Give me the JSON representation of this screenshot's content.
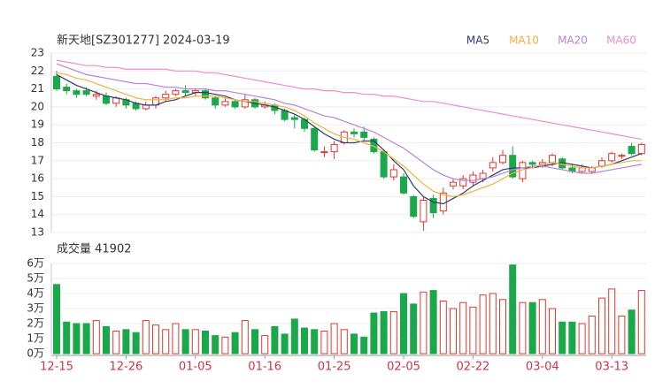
{
  "chart_data": [
    {
      "type": "candlestick",
      "title": "新天地[SZ301277] 2024-03-19",
      "up_color": "#e8352e",
      "down_color": "#1aa84a",
      "open": [
        21.7,
        21.1,
        20.9,
        20.9,
        20.6,
        20.6,
        20.2,
        20.4,
        20.2,
        19.9,
        20.1,
        20.5,
        20.7,
        20.9,
        20.8,
        20.9,
        20.5,
        20.1,
        20.3,
        20.0,
        20.4,
        20.0,
        20.1,
        19.8,
        19.4,
        19.3,
        18.8,
        17.5,
        17.5,
        18.0,
        18.6,
        18.6,
        18.2,
        17.5,
        16.1,
        16.1,
        15.0,
        13.6,
        14.9,
        14.2,
        15.6,
        15.6,
        15.8,
        16.0,
        16.6,
        16.9,
        17.3,
        16.0,
        16.9,
        16.8,
        16.9,
        17.1,
        16.6,
        16.4,
        16.4,
        16.7,
        17.0,
        17.3,
        17.8,
        17.4
      ],
      "high": [
        22.0,
        21.3,
        21.0,
        21.1,
        20.9,
        20.8,
        20.6,
        20.5,
        20.3,
        20.3,
        20.6,
        20.9,
        21.0,
        21.2,
        21.0,
        21.0,
        20.6,
        20.5,
        20.4,
        20.7,
        20.5,
        20.3,
        20.2,
        19.9,
        19.6,
        19.4,
        18.9,
        17.8,
        18.1,
        18.7,
        18.8,
        18.9,
        18.3,
        17.6,
        16.8,
        16.3,
        15.1,
        15.0,
        15.1,
        15.5,
        16.0,
        16.2,
        16.4,
        16.5,
        17.2,
        17.6,
        17.8,
        17.0,
        17.0,
        17.1,
        17.4,
        17.2,
        16.8,
        16.8,
        16.7,
        17.2,
        17.5,
        17.4,
        18.0,
        18.0
      ],
      "low": [
        20.9,
        20.7,
        20.5,
        20.6,
        20.4,
        20.1,
        20.0,
        19.9,
        19.8,
        19.8,
        19.9,
        20.3,
        20.6,
        20.6,
        20.6,
        20.4,
        19.9,
        20.0,
        19.9,
        19.9,
        19.9,
        19.9,
        19.6,
        19.2,
        18.8,
        18.6,
        17.5,
        17.2,
        17.1,
        17.9,
        18.3,
        18.1,
        17.4,
        16.0,
        15.9,
        15.1,
        13.8,
        13.1,
        13.8,
        14.0,
        15.4,
        15.4,
        15.6,
        15.8,
        16.4,
        16.8,
        16.0,
        15.8,
        16.6,
        16.6,
        16.7,
        16.5,
        16.3,
        16.3,
        16.3,
        16.6,
        16.9,
        17.1,
        17.3,
        17.3
      ],
      "close": [
        21.0,
        20.9,
        20.7,
        20.7,
        20.7,
        20.2,
        20.5,
        20.1,
        19.9,
        20.1,
        20.5,
        20.7,
        20.9,
        20.8,
        20.9,
        20.5,
        20.1,
        20.3,
        20.0,
        20.4,
        20.0,
        20.1,
        19.8,
        19.3,
        19.3,
        18.8,
        17.6,
        17.5,
        17.9,
        18.6,
        18.5,
        18.3,
        17.5,
        16.1,
        16.5,
        15.2,
        13.9,
        14.8,
        14.1,
        15.2,
        15.8,
        16.0,
        16.2,
        16.3,
        16.9,
        17.3,
        16.1,
        16.9,
        16.8,
        16.9,
        17.3,
        16.6,
        16.4,
        16.6,
        16.6,
        17.0,
        17.4,
        17.3,
        17.4,
        17.9
      ],
      "series": [
        {
          "name": "MA5",
          "color": "#2f3a66",
          "values": [
            21.8,
            21.5,
            21.2,
            21.0,
            20.8,
            20.6,
            20.5,
            20.4,
            20.2,
            20.1,
            20.1,
            20.3,
            20.4,
            20.6,
            20.8,
            20.8,
            20.7,
            20.6,
            20.4,
            20.3,
            20.2,
            20.1,
            20.0,
            19.8,
            19.6,
            19.3,
            18.9,
            18.5,
            18.2,
            18.0,
            18.0,
            18.1,
            18.1,
            17.6,
            17.0,
            16.5,
            15.6,
            15.0,
            14.7,
            14.6,
            14.9,
            15.2,
            15.6,
            15.9,
            16.2,
            16.5,
            16.6,
            16.6,
            16.6,
            16.7,
            16.8,
            16.9,
            16.8,
            16.7,
            16.6,
            16.7,
            16.8,
            17.0,
            17.2,
            17.4
          ]
        },
        {
          "name": "MA10",
          "color": "#f2b23c",
          "values": [
            21.9,
            21.8,
            21.6,
            21.5,
            21.3,
            21.1,
            20.9,
            20.7,
            20.5,
            20.4,
            20.4,
            20.4,
            20.5,
            20.5,
            20.6,
            20.6,
            20.6,
            20.5,
            20.4,
            20.3,
            20.3,
            20.2,
            20.1,
            20.0,
            19.8,
            19.5,
            19.1,
            18.8,
            18.5,
            18.3,
            18.2,
            18.0,
            17.8,
            17.5,
            17.1,
            16.7,
            16.2,
            15.7,
            15.3,
            15.1,
            15.0,
            15.1,
            15.3,
            15.5,
            15.7,
            16.0,
            16.3,
            16.5,
            16.6,
            16.8,
            16.9,
            16.8,
            16.7,
            16.6,
            16.6,
            16.7,
            16.8,
            16.9,
            17.0,
            17.0
          ]
        },
        {
          "name": "MA20",
          "color": "#b784dc",
          "values": [
            22.4,
            22.2,
            22.0,
            21.8,
            21.7,
            21.6,
            21.5,
            21.4,
            21.3,
            21.3,
            21.2,
            21.1,
            21.1,
            21.0,
            21.0,
            21.0,
            20.9,
            20.9,
            20.8,
            20.7,
            20.6,
            20.5,
            20.4,
            20.2,
            20.1,
            19.9,
            19.7,
            19.5,
            19.4,
            19.2,
            19.0,
            18.8,
            18.6,
            18.3,
            18.0,
            17.7,
            17.3,
            16.9,
            16.5,
            16.2,
            16.0,
            15.9,
            15.9,
            16.0,
            16.1,
            16.3,
            16.5,
            16.6,
            16.7,
            16.7,
            16.6,
            16.5,
            16.4,
            16.3,
            16.3,
            16.4,
            16.5,
            16.6,
            16.7,
            16.8
          ]
        },
        {
          "name": "MA60",
          "color": "#f28cc9",
          "values": [
            22.6,
            22.5,
            22.4,
            22.3,
            22.3,
            22.2,
            22.2,
            22.1,
            22.1,
            22.1,
            22.1,
            22.1,
            22.0,
            22.0,
            22.0,
            21.9,
            21.9,
            21.8,
            21.7,
            21.6,
            21.5,
            21.4,
            21.3,
            21.2,
            21.1,
            21.0,
            21.0,
            20.9,
            20.9,
            20.8,
            20.8,
            20.7,
            20.7,
            20.6,
            20.6,
            20.5,
            20.4,
            20.3,
            20.3,
            20.2,
            20.1,
            20.0,
            19.9,
            19.8,
            19.7,
            19.6,
            19.5,
            19.4,
            19.3,
            19.2,
            19.1,
            19.0,
            18.9,
            18.8,
            18.7,
            18.6,
            18.5,
            18.4,
            18.3,
            18.2
          ]
        }
      ],
      "ylim": [
        13,
        23
      ],
      "yticks": [
        13,
        14,
        15,
        16,
        17,
        18,
        19,
        20,
        21,
        22,
        23
      ],
      "grid": true
    },
    {
      "type": "bar",
      "title": "成交量 41902",
      "categories": [
        "12-15",
        null,
        null,
        null,
        null,
        null,
        null,
        "12-26",
        null,
        null,
        null,
        null,
        null,
        null,
        "01-05",
        null,
        null,
        null,
        null,
        null,
        null,
        "01-16",
        null,
        null,
        null,
        null,
        null,
        null,
        "01-25",
        null,
        null,
        null,
        null,
        null,
        null,
        "02-05",
        null,
        null,
        null,
        null,
        null,
        null,
        "02-22",
        null,
        null,
        null,
        null,
        null,
        null,
        "03-04",
        null,
        null,
        null,
        null,
        null,
        null,
        "03-13",
        null,
        null,
        null
      ],
      "values": [
        4.6,
        2.1,
        2.0,
        2.0,
        2.2,
        1.8,
        1.5,
        1.6,
        1.4,
        2.2,
        1.9,
        1.6,
        2.0,
        1.6,
        1.6,
        1.5,
        1.2,
        1.1,
        1.4,
        2.2,
        1.6,
        1.2,
        1.8,
        1.3,
        2.3,
        1.7,
        1.6,
        1.5,
        2.0,
        1.6,
        1.3,
        1.1,
        2.7,
        2.8,
        2.8,
        4.0,
        3.3,
        4.1,
        4.2,
        3.5,
        3.0,
        3.4,
        3.1,
        3.9,
        4.0,
        3.6,
        5.9,
        3.4,
        3.4,
        3.6,
        3.0,
        2.1,
        2.1,
        2.0,
        2.5,
        3.7,
        4.3,
        2.5,
        2.9,
        4.2
      ],
      "ylim": [
        0,
        6
      ],
      "yticks": [
        {
          "value": 0,
          "label": "0万"
        },
        {
          "value": 1,
          "label": "1万"
        },
        {
          "value": 2,
          "label": "2万"
        },
        {
          "value": 3,
          "label": "3万"
        },
        {
          "value": 4,
          "label": "4万"
        },
        {
          "value": 5,
          "label": "5万"
        },
        {
          "value": 6,
          "label": "6万"
        }
      ],
      "grid": true
    }
  ]
}
